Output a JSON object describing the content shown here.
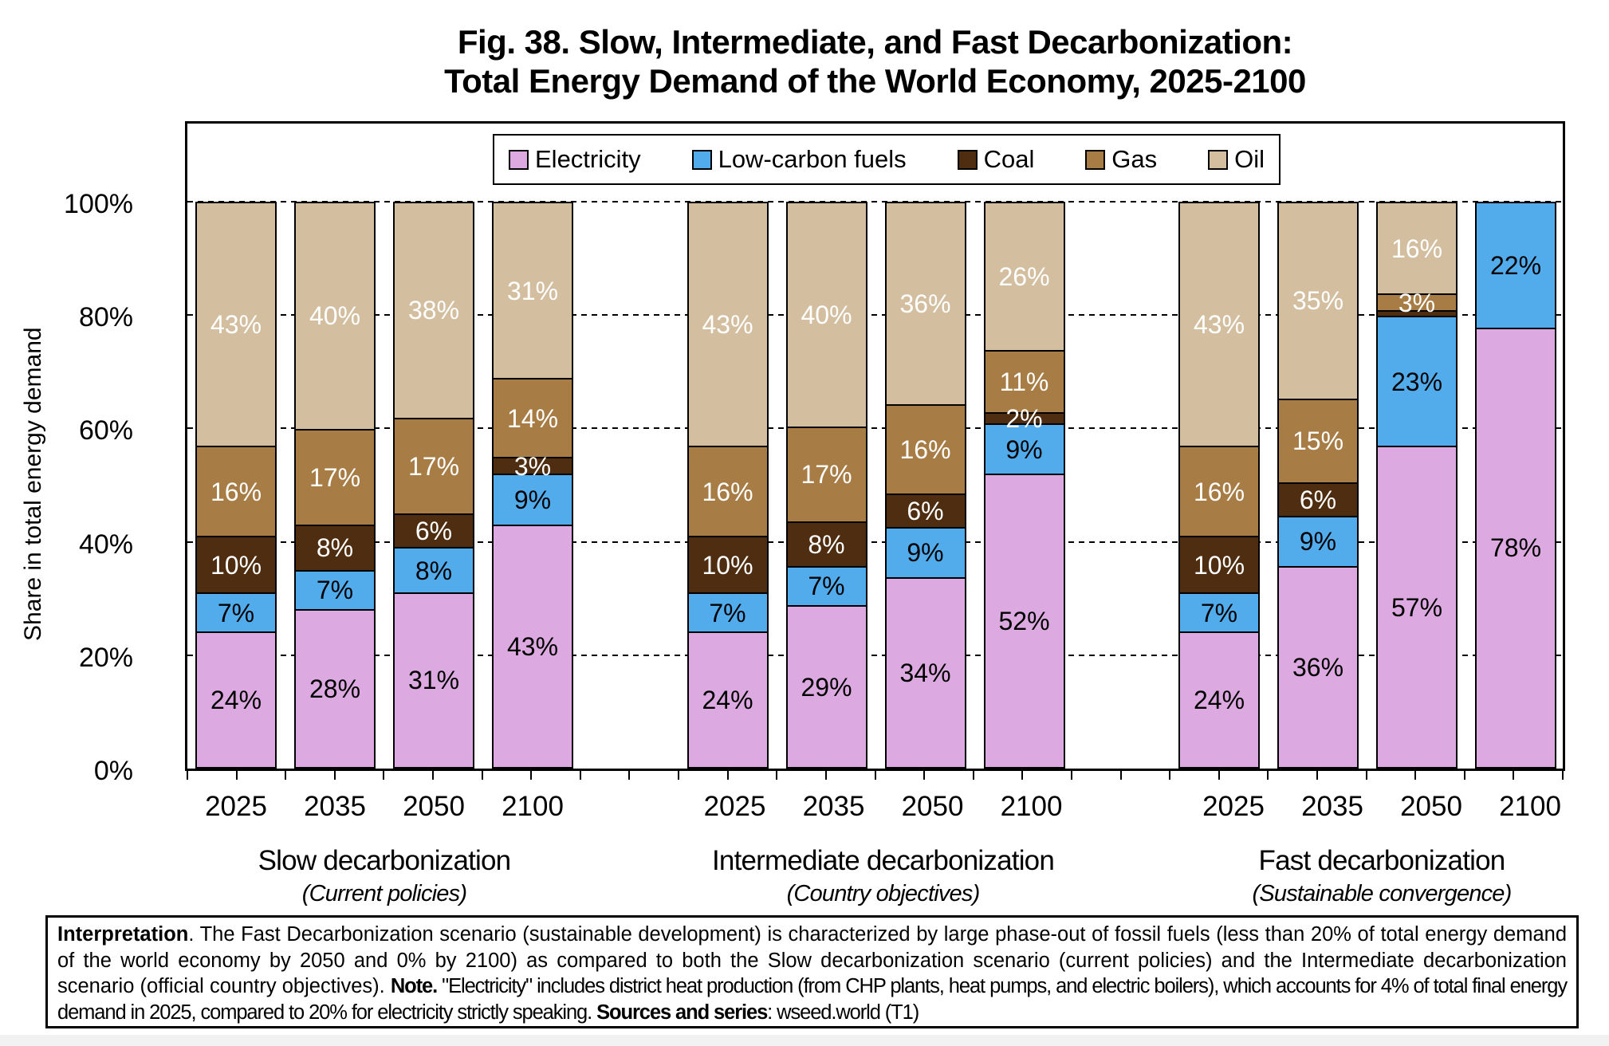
{
  "title": {
    "line1": "Fig. 38. Slow, Intermediate, and Fast Decarbonization:",
    "line2": "Total Energy Demand of the World Economy, 2025-2100"
  },
  "y_axis": {
    "label": "Share in total energy demand",
    "ticks": [
      {
        "label": "100%",
        "value": 100
      },
      {
        "label": "80%",
        "value": 80
      },
      {
        "label": "60%",
        "value": 60
      },
      {
        "label": "40%",
        "value": 40
      },
      {
        "label": "20%",
        "value": 20
      },
      {
        "label": "0%",
        "value": 0
      }
    ]
  },
  "legend": {
    "items": [
      {
        "label": "Electricity",
        "color": "#DCA9E0"
      },
      {
        "label": "Low-carbon fuels",
        "color": "#52ACEC"
      },
      {
        "label": "Coal",
        "color": "#4F2D10"
      },
      {
        "label": "Gas",
        "color": "#A87C45"
      },
      {
        "label": "Oil",
        "color": "#D3BF9F"
      }
    ]
  },
  "chart_data": {
    "type": "bar",
    "subtype": "stacked-100-percent",
    "title": "Fig. 38. Slow, Intermediate, and Fast Decarbonization: Total Energy Demand of the World Economy, 2025-2100",
    "ylabel": "Share in total energy demand",
    "ylim": [
      0,
      100
    ],
    "unit": "%",
    "grid": "dashed horizontal at 20/40/60/80/100",
    "legend_position": "top-center",
    "series_bottom_to_top": [
      "Electricity",
      "Low-carbon fuels",
      "Coal",
      "Gas",
      "Oil"
    ],
    "series_colors": {
      "Electricity": "#DCA9E0",
      "Low-carbon fuels": "#52ACEC",
      "Coal": "#4F2D10",
      "Gas": "#A87C45",
      "Oil": "#D3BF9F"
    },
    "label_text_colors": {
      "Electricity": "#000000",
      "Low-carbon fuels": "#000000",
      "Coal": "#ffffff",
      "Gas": "#ffffff",
      "Oil": "#ffffff"
    },
    "groups": [
      {
        "label": "Slow decarbonization",
        "sublabel": "(Current policies)",
        "bars": [
          {
            "year": "2025",
            "values": {
              "Electricity": 24,
              "Low-carbon fuels": 7,
              "Coal": 10,
              "Gas": 16,
              "Oil": 43
            }
          },
          {
            "year": "2035",
            "values": {
              "Electricity": 28,
              "Low-carbon fuels": 7,
              "Coal": 8,
              "Gas": 17,
              "Oil": 40
            }
          },
          {
            "year": "2050",
            "values": {
              "Electricity": 31,
              "Low-carbon fuels": 8,
              "Coal": 6,
              "Gas": 17,
              "Oil": 38
            }
          },
          {
            "year": "2100",
            "values": {
              "Electricity": 43,
              "Low-carbon fuels": 9,
              "Coal": 3,
              "Gas": 14,
              "Oil": 31
            }
          }
        ]
      },
      {
        "label": "Intermediate decarbonization",
        "sublabel": "(Country objectives)",
        "bars": [
          {
            "year": "2025",
            "values": {
              "Electricity": 24,
              "Low-carbon fuels": 7,
              "Coal": 10,
              "Gas": 16,
              "Oil": 43
            }
          },
          {
            "year": "2035",
            "values": {
              "Electricity": 29,
              "Low-carbon fuels": 7,
              "Coal": 8,
              "Gas": 17,
              "Oil": 40
            }
          },
          {
            "year": "2050",
            "values": {
              "Electricity": 34,
              "Low-carbon fuels": 9,
              "Coal": 6,
              "Gas": 16,
              "Oil": 36
            }
          },
          {
            "year": "2100",
            "values": {
              "Electricity": 52,
              "Low-carbon fuels": 9,
              "Coal": 2,
              "Gas": 11,
              "Oil": 26
            }
          }
        ]
      },
      {
        "label": "Fast decarbonization",
        "sublabel": "(Sustainable convergence)",
        "bars": [
          {
            "year": "2025",
            "values": {
              "Electricity": 24,
              "Low-carbon fuels": 7,
              "Coal": 10,
              "Gas": 16,
              "Oil": 43
            }
          },
          {
            "year": "2035",
            "values": {
              "Electricity": 36,
              "Low-carbon fuels": 9,
              "Coal": 6,
              "Gas": 15,
              "Oil": 35
            }
          },
          {
            "year": "2050",
            "values": {
              "Electricity": 57,
              "Low-carbon fuels": 23,
              "Coal": 1,
              "Gas": 3,
              "Oil": 16
            },
            "hide_labels": [
              "Coal"
            ]
          },
          {
            "year": "2100",
            "values": {
              "Electricity": 78,
              "Low-carbon fuels": 22,
              "Coal": 0,
              "Gas": 0,
              "Oil": 0
            }
          }
        ]
      }
    ]
  },
  "interpretation": {
    "parts": [
      {
        "text": "Interpretation",
        "bold": true
      },
      {
        "text": ". The Fast Decarbonization scenario (sustainable development) is characterized by large phase-out of fossil fuels (less than 20% of total energy demand of the world economy by 2050 and 0% by 2100) as compared to both the Slow decarbonization scenario (current policies) and the Intermediate decarbonization scenario (official country objectives). "
      },
      {
        "text": "Note.",
        "bold": true,
        "condensed": true
      },
      {
        "text": " \"Electricity\" includes district heat production (from CHP plants, heat pumps, and electric boilers), which accounts for 4% of total final energy demand in 2025, compared to 20% for electricity strictly speaking. ",
        "condensed": true
      },
      {
        "text": "Sources and series",
        "bold": true,
        "condensed": true
      },
      {
        "text": ": wseed.world (T1)",
        "condensed": true
      }
    ]
  }
}
